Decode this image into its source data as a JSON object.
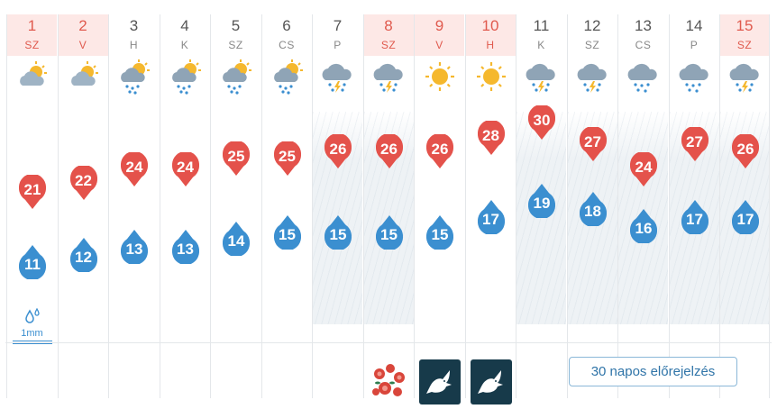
{
  "days": [
    {
      "num": "1",
      "name": "SZ",
      "weekend": true,
      "icon": "partly-cloudy-icon",
      "max": "21",
      "min": "11",
      "rain_bg": false,
      "precip": "1mm",
      "holiday": null
    },
    {
      "num": "2",
      "name": "V",
      "weekend": true,
      "icon": "partly-cloudy-icon",
      "max": "22",
      "min": "12",
      "rain_bg": false,
      "precip": null,
      "holiday": null
    },
    {
      "num": "3",
      "name": "H",
      "weekend": false,
      "icon": "sun-cloud-rain-icon",
      "max": "24",
      "min": "13",
      "rain_bg": false,
      "precip": null,
      "holiday": null
    },
    {
      "num": "4",
      "name": "K",
      "weekend": false,
      "icon": "sun-cloud-rain-icon",
      "max": "24",
      "min": "13",
      "rain_bg": false,
      "precip": null,
      "holiday": null
    },
    {
      "num": "5",
      "name": "SZ",
      "weekend": false,
      "icon": "sun-cloud-rain-icon",
      "max": "25",
      "min": "14",
      "rain_bg": false,
      "precip": null,
      "holiday": null
    },
    {
      "num": "6",
      "name": "CS",
      "weekend": false,
      "icon": "sun-cloud-rain-icon",
      "max": "25",
      "min": "15",
      "rain_bg": false,
      "precip": null,
      "holiday": null
    },
    {
      "num": "7",
      "name": "P",
      "weekend": false,
      "icon": "thunderstorm-icon",
      "max": "26",
      "min": "15",
      "rain_bg": true,
      "precip": null,
      "holiday": null
    },
    {
      "num": "8",
      "name": "SZ",
      "weekend": true,
      "icon": "thunderstorm-icon",
      "max": "26",
      "min": "15",
      "rain_bg": true,
      "precip": null,
      "holiday": "flower"
    },
    {
      "num": "9",
      "name": "V",
      "weekend": true,
      "icon": "sun-icon",
      "max": "26",
      "min": "15",
      "rain_bg": false,
      "precip": null,
      "holiday": "dove"
    },
    {
      "num": "10",
      "name": "H",
      "weekend": true,
      "icon": "sun-icon",
      "max": "28",
      "min": "17",
      "rain_bg": false,
      "precip": null,
      "holiday": "dove"
    },
    {
      "num": "11",
      "name": "K",
      "weekend": false,
      "icon": "thunderstorm-icon",
      "max": "30",
      "min": "19",
      "rain_bg": true,
      "precip": null,
      "holiday": null
    },
    {
      "num": "12",
      "name": "SZ",
      "weekend": false,
      "icon": "thunderstorm-icon",
      "max": "27",
      "min": "18",
      "rain_bg": true,
      "precip": null,
      "holiday": null
    },
    {
      "num": "13",
      "name": "CS",
      "weekend": false,
      "icon": "cloud-rain-icon",
      "max": "24",
      "min": "16",
      "rain_bg": true,
      "precip": null,
      "holiday": null
    },
    {
      "num": "14",
      "name": "P",
      "weekend": false,
      "icon": "cloud-rain-icon",
      "max": "27",
      "min": "17",
      "rain_bg": true,
      "precip": null,
      "holiday": null
    },
    {
      "num": "15",
      "name": "SZ",
      "weekend": true,
      "icon": "thunderstorm-icon",
      "max": "26",
      "min": "17",
      "rain_bg": true,
      "precip": null,
      "holiday": null
    }
  ],
  "forecast_button": "30 napos előrejelzés",
  "colors": {
    "max": "#e4524b",
    "min": "#3b8fd0",
    "weekend": "#e05a4e",
    "weekend_bg": "#fde8e6"
  }
}
